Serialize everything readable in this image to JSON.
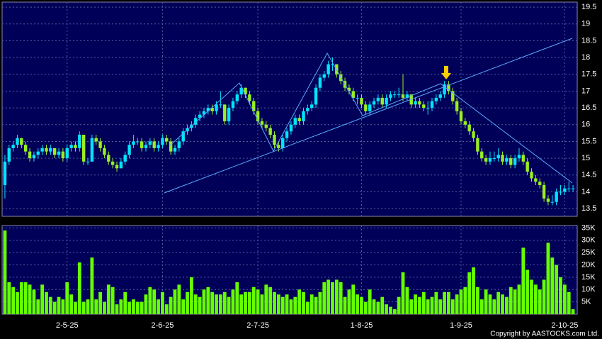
{
  "chart_data": {
    "type": "candlestick",
    "categories": [
      null,
      null,
      null,
      null,
      null,
      null,
      null,
      null,
      null,
      null,
      null,
      null,
      null,
      null,
      null,
      "2-5-25",
      null,
      null,
      null,
      null,
      null,
      null,
      null,
      null,
      null,
      null,
      null,
      null,
      null,
      null,
      null,
      null,
      null,
      null,
      null,
      null,
      null,
      null,
      "2-6-25",
      null,
      null,
      null,
      null,
      null,
      null,
      null,
      null,
      null,
      null,
      null,
      null,
      null,
      null,
      null,
      null,
      null,
      null,
      null,
      null,
      null,
      null,
      "2-7-25",
      null,
      null,
      null,
      null,
      null,
      null,
      null,
      null,
      null,
      null,
      null,
      null,
      null,
      null,
      null,
      null,
      null,
      null,
      null,
      null,
      null,
      null,
      null,
      null,
      "1-8-25",
      null,
      null,
      null,
      null,
      null,
      null,
      null,
      null,
      null,
      null,
      null,
      null,
      null,
      null,
      null,
      null,
      null,
      null,
      null,
      null,
      null,
      null,
      null,
      "1-9-25",
      null,
      null,
      null,
      null,
      null,
      null,
      null,
      null,
      null,
      null,
      null,
      null,
      null,
      null,
      null,
      null,
      null,
      null,
      null,
      null,
      null,
      null,
      null,
      null,
      "2-10-25",
      null,
      null
    ],
    "ohlc": [
      [
        14.2,
        15.1,
        13.8,
        14.9
      ],
      [
        14.9,
        15.4,
        14.8,
        15.3
      ],
      [
        15.3,
        15.5,
        15.2,
        15.4
      ],
      [
        15.4,
        15.7,
        15.3,
        15.6
      ],
      [
        15.6,
        15.6,
        15.3,
        15.4
      ],
      [
        15.4,
        15.5,
        15.1,
        15.2
      ],
      [
        15.2,
        15.3,
        14.9,
        15.0
      ],
      [
        15.0,
        15.2,
        14.9,
        15.1
      ],
      [
        15.1,
        15.3,
        15.0,
        15.2
      ],
      [
        15.2,
        15.4,
        15.1,
        15.3
      ],
      [
        15.3,
        15.4,
        15.1,
        15.2
      ],
      [
        15.2,
        15.4,
        15.1,
        15.3
      ],
      [
        15.3,
        15.3,
        15.0,
        15.1
      ],
      [
        15.1,
        15.3,
        15.0,
        15.2
      ],
      [
        15.2,
        15.3,
        14.9,
        15.0
      ],
      [
        15.0,
        15.4,
        14.9,
        15.3
      ],
      [
        15.3,
        15.5,
        15.2,
        15.4
      ],
      [
        15.4,
        15.5,
        15.2,
        15.3
      ],
      [
        15.3,
        15.8,
        15.2,
        15.7
      ],
      [
        15.7,
        15.7,
        14.8,
        14.9
      ],
      [
        14.9,
        15.0,
        14.8,
        14.9
      ],
      [
        14.9,
        15.7,
        14.9,
        15.6
      ],
      [
        15.6,
        15.7,
        15.4,
        15.5
      ],
      [
        15.5,
        15.6,
        15.2,
        15.3
      ],
      [
        15.3,
        15.4,
        15.0,
        15.1
      ],
      [
        15.1,
        15.2,
        14.8,
        14.9
      ],
      [
        14.9,
        15.0,
        14.7,
        14.8
      ],
      [
        14.8,
        14.9,
        14.6,
        14.7
      ],
      [
        14.7,
        15.0,
        14.7,
        14.9
      ],
      [
        14.9,
        15.2,
        14.8,
        15.1
      ],
      [
        15.1,
        15.5,
        15.0,
        15.4
      ],
      [
        15.4,
        15.7,
        15.3,
        15.5
      ],
      [
        15.5,
        15.6,
        15.4,
        15.5
      ],
      [
        15.5,
        15.6,
        15.2,
        15.3
      ],
      [
        15.3,
        15.5,
        15.2,
        15.4
      ],
      [
        15.4,
        15.6,
        15.3,
        15.5
      ],
      [
        15.5,
        15.6,
        15.2,
        15.3
      ],
      [
        15.3,
        15.5,
        15.2,
        15.4
      ],
      [
        15.4,
        15.7,
        15.3,
        15.6
      ],
      [
        15.6,
        15.7,
        15.4,
        15.5
      ],
      [
        15.5,
        15.6,
        15.1,
        15.2
      ],
      [
        15.2,
        15.4,
        15.1,
        15.3
      ],
      [
        15.3,
        15.6,
        15.2,
        15.5
      ],
      [
        15.5,
        15.9,
        15.4,
        15.8
      ],
      [
        15.8,
        16.0,
        15.7,
        15.9
      ],
      [
        15.9,
        16.1,
        15.8,
        16.0
      ],
      [
        16.0,
        16.3,
        15.9,
        16.2
      ],
      [
        16.2,
        16.4,
        16.1,
        16.3
      ],
      [
        16.3,
        16.5,
        16.2,
        16.4
      ],
      [
        16.4,
        16.6,
        16.3,
        16.5
      ],
      [
        16.5,
        16.6,
        16.3,
        16.4
      ],
      [
        16.4,
        16.7,
        16.3,
        16.6
      ],
      [
        16.6,
        17.0,
        16.5,
        16.6
      ],
      [
        16.6,
        16.6,
        16.0,
        16.1
      ],
      [
        16.1,
        16.6,
        16.0,
        16.5
      ],
      [
        16.5,
        16.8,
        16.4,
        16.7
      ],
      [
        16.7,
        17.0,
        16.6,
        16.9
      ],
      [
        16.9,
        17.2,
        16.8,
        17.1
      ],
      [
        17.1,
        17.1,
        16.8,
        16.9
      ],
      [
        16.9,
        17.0,
        16.6,
        16.7
      ],
      [
        16.7,
        16.8,
        16.3,
        16.4
      ],
      [
        16.4,
        16.5,
        16.0,
        16.1
      ],
      [
        16.1,
        16.2,
        15.9,
        16.0
      ],
      [
        16.0,
        16.1,
        15.8,
        15.9
      ],
      [
        15.9,
        16.0,
        15.6,
        15.7
      ],
      [
        15.7,
        15.8,
        15.3,
        15.4
      ],
      [
        15.4,
        15.5,
        15.2,
        15.3
      ],
      [
        15.3,
        15.7,
        15.2,
        15.6
      ],
      [
        15.6,
        15.9,
        15.5,
        15.8
      ],
      [
        15.8,
        16.1,
        15.7,
        16.0
      ],
      [
        16.0,
        16.3,
        15.9,
        16.2
      ],
      [
        16.2,
        16.3,
        16.0,
        16.1
      ],
      [
        16.1,
        16.5,
        16.0,
        16.4
      ],
      [
        16.4,
        16.6,
        16.3,
        16.5
      ],
      [
        16.5,
        16.7,
        16.4,
        16.6
      ],
      [
        16.6,
        17.2,
        16.5,
        17.1
      ],
      [
        17.1,
        17.5,
        17.0,
        17.4
      ],
      [
        17.4,
        17.6,
        17.3,
        17.5
      ],
      [
        17.5,
        17.9,
        17.4,
        17.8
      ],
      [
        17.8,
        18.0,
        17.6,
        17.8
      ],
      [
        17.8,
        17.8,
        17.4,
        17.5
      ],
      [
        17.5,
        17.6,
        17.2,
        17.3
      ],
      [
        17.3,
        17.4,
        17.0,
        17.1
      ],
      [
        17.1,
        17.2,
        16.9,
        17.0
      ],
      [
        17.0,
        17.1,
        16.7,
        16.8
      ],
      [
        16.8,
        16.9,
        16.6,
        16.8
      ],
      [
        16.8,
        16.9,
        16.5,
        16.6
      ],
      [
        16.6,
        16.7,
        16.3,
        16.4
      ],
      [
        16.4,
        16.7,
        16.3,
        16.6
      ],
      [
        16.6,
        16.8,
        16.5,
        16.7
      ],
      [
        16.7,
        16.9,
        16.6,
        16.8
      ],
      [
        16.8,
        16.9,
        16.5,
        16.6
      ],
      [
        16.6,
        16.9,
        16.5,
        16.8
      ],
      [
        16.8,
        17.0,
        16.7,
        16.9
      ],
      [
        16.9,
        17.0,
        16.8,
        16.9
      ],
      [
        16.9,
        17.1,
        16.8,
        16.9
      ],
      [
        16.9,
        17.5,
        16.7,
        16.8
      ],
      [
        16.8,
        17.0,
        16.7,
        16.9
      ],
      [
        16.9,
        16.9,
        16.5,
        16.6
      ],
      [
        16.6,
        16.8,
        16.5,
        16.7
      ],
      [
        16.7,
        16.8,
        16.5,
        16.6
      ],
      [
        16.6,
        16.7,
        16.4,
        16.5
      ],
      [
        16.5,
        16.7,
        16.3,
        16.5
      ],
      [
        16.5,
        16.8,
        16.4,
        16.7
      ],
      [
        16.7,
        16.9,
        16.6,
        16.8
      ],
      [
        16.8,
        17.0,
        16.7,
        16.9
      ],
      [
        16.9,
        17.3,
        16.8,
        17.2
      ],
      [
        17.2,
        17.3,
        16.9,
        17.0
      ],
      [
        17.0,
        17.1,
        16.6,
        16.7
      ],
      [
        16.7,
        16.8,
        16.3,
        16.4
      ],
      [
        16.4,
        16.5,
        16.0,
        16.1
      ],
      [
        16.1,
        16.2,
        15.9,
        16.0
      ],
      [
        16.0,
        16.1,
        15.7,
        15.8
      ],
      [
        15.8,
        15.9,
        15.5,
        15.6
      ],
      [
        15.6,
        15.7,
        15.1,
        15.2
      ],
      [
        15.2,
        15.3,
        14.9,
        15.0
      ],
      [
        15.0,
        15.1,
        14.8,
        14.9
      ],
      [
        14.9,
        15.2,
        14.8,
        15.0
      ],
      [
        15.0,
        15.2,
        14.9,
        15.0
      ],
      [
        15.0,
        15.3,
        14.9,
        15.1
      ],
      [
        15.1,
        15.2,
        14.8,
        14.9
      ],
      [
        14.9,
        15.1,
        14.8,
        15.0
      ],
      [
        15.0,
        15.1,
        14.7,
        14.8
      ],
      [
        14.8,
        15.1,
        14.7,
        15.0
      ],
      [
        15.0,
        15.3,
        14.9,
        15.1
      ],
      [
        15.1,
        15.2,
        14.8,
        14.9
      ],
      [
        14.9,
        15.0,
        14.5,
        14.6
      ],
      [
        14.6,
        14.7,
        14.3,
        14.4
      ],
      [
        14.4,
        14.5,
        14.2,
        14.3
      ],
      [
        14.3,
        14.4,
        14.1,
        14.2
      ],
      [
        14.2,
        14.3,
        13.7,
        13.8
      ],
      [
        13.8,
        13.9,
        13.6,
        13.7
      ],
      [
        13.7,
        13.9,
        13.6,
        13.7
      ],
      [
        13.7,
        14.1,
        13.6,
        14.0
      ],
      [
        14.0,
        14.2,
        13.9,
        14.0
      ],
      [
        14.0,
        14.2,
        13.9,
        14.1
      ],
      [
        14.1,
        14.3,
        14.0,
        14.1
      ],
      [
        14.1,
        14.2,
        14.0,
        14.1
      ]
    ],
    "volume": [
      34000,
      13000,
      11000,
      9000,
      13000,
      13000,
      12000,
      10000,
      6000,
      12000,
      9000,
      7000,
      5000,
      7000,
      6000,
      13000,
      8000,
      5000,
      21000,
      5000,
      6000,
      23000,
      6000,
      9000,
      5000,
      12000,
      11000,
      4000,
      6000,
      9000,
      5000,
      6000,
      5000,
      5000,
      8000,
      11000,
      10000,
      6000,
      9000,
      4000,
      7000,
      10000,
      12000,
      6000,
      9000,
      15000,
      8000,
      7000,
      10000,
      11000,
      9000,
      8000,
      8000,
      9000,
      7000,
      10000,
      13000,
      8000,
      9000,
      9000,
      11000,
      10000,
      8000,
      12000,
      11000,
      9000,
      8000,
      7000,
      8000,
      6000,
      7000,
      10000,
      9000,
      5000,
      8000,
      7000,
      9000,
      13000,
      14000,
      13000,
      14000,
      13000,
      7000,
      10000,
      12000,
      8000,
      7000,
      5000,
      10000,
      6000,
      5000,
      7000,
      4000,
      3000,
      2000,
      7000,
      17000,
      11000,
      6000,
      8000,
      7000,
      9000,
      6000,
      7000,
      9000,
      6000,
      9000,
      9000,
      6000,
      8000,
      10000,
      11000,
      17000,
      19000,
      11000,
      6000,
      10000,
      8000,
      6000,
      9000,
      8000,
      7000,
      11000,
      10000,
      12000,
      27000,
      18000,
      14000,
      12000,
      10000,
      14000,
      29000,
      23000,
      20000,
      15000,
      12000,
      9000,
      2000
    ],
    "up_color": "#00e5ff",
    "down_color": "#99ee22",
    "volume_color": "#66ff00",
    "ylim": [
      13.27,
      19.65
    ],
    "yticks": [
      13.5,
      14,
      14.5,
      15,
      15.5,
      16,
      16.5,
      17,
      17.5,
      18,
      18.5,
      19,
      19.5
    ],
    "vol_ylim": [
      0,
      36000
    ],
    "vol_yticks": [
      {
        "value": 5000,
        "label": "5K"
      },
      {
        "value": 10000,
        "label": "10K"
      },
      {
        "value": 15000,
        "label": "15K"
      },
      {
        "value": 20000,
        "label": "20K"
      },
      {
        "value": 25000,
        "label": "25K"
      },
      {
        "value": 30000,
        "label": "30K"
      },
      {
        "value": 35000,
        "label": "35K"
      }
    ],
    "grid": true,
    "copyright": "Copyright by AASTOCKS.com Ltd."
  }
}
